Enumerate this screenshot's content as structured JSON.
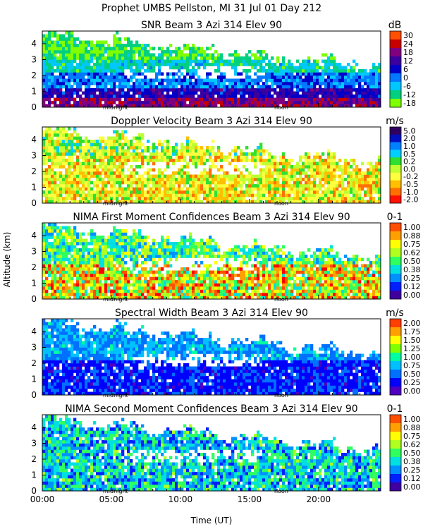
{
  "main_title": "Prophet  UMBS Pellston, MI  31 Jul 01 Day 212",
  "ylabel": "Altitude (km)",
  "xlabel": "Time (UT)",
  "x_ticks": [
    "00:00",
    "05:00",
    "10:00",
    "15:00",
    "20:00"
  ],
  "marker_labels": [
    "midnight",
    "noon"
  ],
  "colors": {
    "snr": [
      "#7fff00",
      "#00d080",
      "#00c8ff",
      "#0078ff",
      "#0000c8",
      "#3c00a0",
      "#800080",
      "#c80000",
      "#ff5000",
      "#ffb000"
    ],
    "velocity": [
      "#ff1000",
      "#ff7000",
      "#ffc000",
      "#ffff40",
      "#c0ff30",
      "#30e030",
      "#00d0ff",
      "#0080ff",
      "#0010c0",
      "#300060"
    ],
    "confidence": [
      "#4000a0",
      "#0020ff",
      "#0090ff",
      "#00e0e0",
      "#30ff60",
      "#b0ff20",
      "#ffff00",
      "#ffa000",
      "#ff5000",
      "#ff0000"
    ],
    "width": [
      "#5000c0",
      "#0000ff",
      "#0070ff",
      "#00c0ff",
      "#00ffa0",
      "#80ff00",
      "#ffff00",
      "#ffa000",
      "#ff4000",
      "#ff0000"
    ]
  },
  "chart_data": [
    {
      "type": "heatmap",
      "title": "SNR Beam 3 Azi 314 Elev 90",
      "unit": "dB",
      "colorbar": [
        "-18",
        "-12",
        "-6",
        "0",
        "6",
        "12",
        "18",
        "24",
        "30"
      ],
      "yticks": [
        "0",
        "1",
        "2",
        "3",
        "4"
      ],
      "x_range_hours": [
        0,
        24.5
      ],
      "y_range_km": [
        0,
        4.8
      ],
      "rows_km": [
        {
          "alt": 0.25,
          "level": 5
        },
        {
          "alt": 0.75,
          "level": 4
        },
        {
          "alt": 1.25,
          "level": 3
        },
        {
          "alt": 1.75,
          "level": 2
        },
        {
          "alt": 2.25,
          "level": 1
        },
        {
          "alt": 2.75,
          "level": 0
        },
        {
          "alt": 3.25,
          "level": 0
        },
        {
          "alt": 3.75,
          "level": 0
        },
        {
          "alt": 4.25,
          "level": 0
        }
      ]
    },
    {
      "type": "heatmap",
      "title": "Doppler Velocity Beam 3 Azi 314 Elev 90",
      "unit": "m/s",
      "colorbar": [
        "-2.0",
        "-1.0",
        "-0.5",
        "-0.2",
        "0.0",
        "0.2",
        "0.5",
        "1.0",
        "2.0",
        "5.0"
      ],
      "yticks": [
        "0",
        "1",
        "2",
        "3",
        "4"
      ],
      "x_range_hours": [
        0,
        24.5
      ],
      "y_range_km": [
        0,
        4.8
      ]
    },
    {
      "type": "heatmap",
      "title": "NIMA First Moment Confidences Beam 3 Azi 314 Elev 90",
      "unit": "0-1",
      "colorbar": [
        "0.00",
        "0.12",
        "0.25",
        "0.38",
        "0.50",
        "0.62",
        "0.75",
        "0.88",
        "1.00"
      ],
      "yticks": [
        "0",
        "1",
        "2",
        "3",
        "4"
      ],
      "x_range_hours": [
        0,
        24.5
      ],
      "y_range_km": [
        0,
        4.8
      ]
    },
    {
      "type": "heatmap",
      "title": "Spectral Width Beam 3 Azi 314 Elev 90",
      "unit": "m/s",
      "colorbar": [
        "0.00",
        "0.25",
        "0.50",
        "0.75",
        "1.00",
        "1.25",
        "1.50",
        "1.75",
        "2.00"
      ],
      "yticks": [
        "0",
        "1",
        "2",
        "3",
        "4"
      ],
      "x_range_hours": [
        0,
        24.5
      ],
      "y_range_km": [
        0,
        4.8
      ]
    },
    {
      "type": "heatmap",
      "title": "NIMA Second Moment Confidences Beam 3 Azi 314 Elev 90",
      "unit": "0-1",
      "colorbar": [
        "0.00",
        "0.12",
        "0.25",
        "0.38",
        "0.50",
        "0.62",
        "0.75",
        "0.88",
        "1.00"
      ],
      "yticks": [
        "0",
        "1",
        "2",
        "3",
        "4"
      ],
      "x_range_hours": [
        0,
        24.5
      ],
      "y_range_km": [
        0,
        4.8
      ]
    }
  ]
}
